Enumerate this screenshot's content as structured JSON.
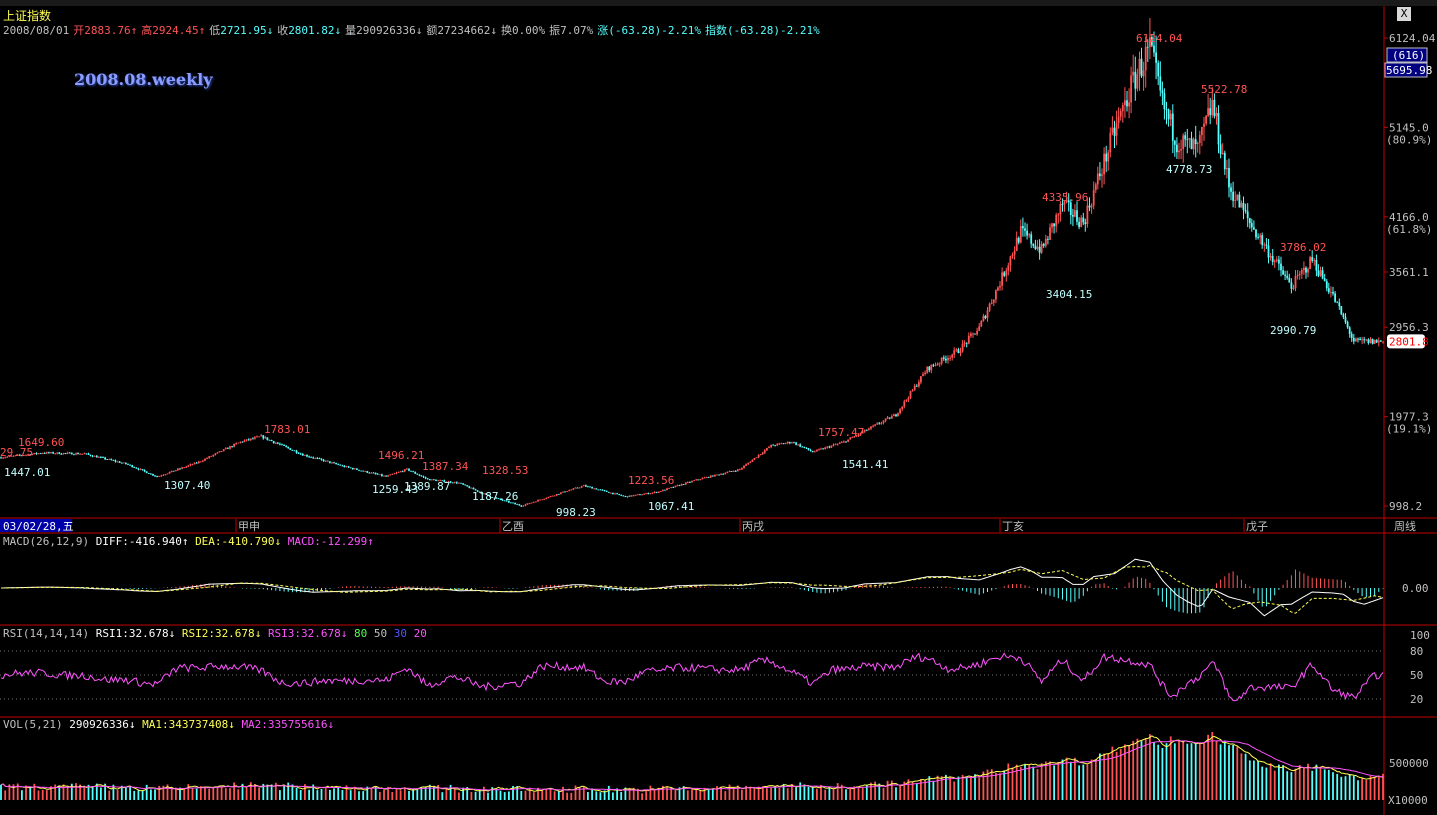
{
  "window": {
    "title": "上证指数",
    "close_glyph": "X"
  },
  "info_line": {
    "date": "2008/08/01",
    "open_label": "开",
    "open": "2883.76",
    "open_arrow": "↑",
    "high_label": "高",
    "high": "2924.45",
    "high_arrow": "↑",
    "low_label": "低",
    "low": "2721.95",
    "low_arrow": "↓",
    "close_label": "收",
    "close": "2801.82",
    "close_arrow": "↓",
    "vol_label": "量",
    "volume": "290926336",
    "vol_arrow": "↓",
    "amount_label": "额",
    "amount": "27234662",
    "amount_arrow": "↓",
    "turnover": "换0.00%",
    "amplitude": "振7.07%",
    "change": "涨(-63.28)-2.21%",
    "index_change": "指数(-63.28)-2.21%"
  },
  "watermark": "2008.08.weekly",
  "right_axis": {
    "ticks": [
      {
        "label": "6124.04",
        "value": 6124.04
      },
      {
        "label": "5145.0",
        "value": 5145.0
      },
      {
        "label": "4166.0",
        "value": 4166.0
      },
      {
        "label": "3561.1",
        "value": 3561.1
      },
      {
        "label": "2956.3",
        "value": 2956.3
      },
      {
        "label": "1977.3",
        "value": 1977.3
      },
      {
        "label": "998.2",
        "value": 998.2
      }
    ],
    "pct_labels": [
      {
        "label": "(80.9%)",
        "value": 5145.0
      },
      {
        "label": "(61.8%)",
        "value": 4166.0
      },
      {
        "label": "(19.1%)",
        "value": 1977.3
      }
    ],
    "box_count": "(616)",
    "box_value": "5695.98",
    "current_price": "2801.8"
  },
  "year_bar": {
    "date_label": "03/02/28,五",
    "years": [
      "甲申",
      "乙酉",
      "丙戌",
      "丁亥",
      "戊子"
    ],
    "period": "周线"
  },
  "macd": {
    "label": "MACD(26,12,9)",
    "diff": "DIFF:-416.940",
    "diff_arrow": "↑",
    "dea": "DEA:-410.790",
    "dea_arrow": "↓",
    "macd": "MACD:-12.299",
    "macd_arrow": "↑",
    "zero_label": "0.00"
  },
  "rsi": {
    "label": "RSI(14,14,14)",
    "rsi1": "RSI1:32.678",
    "rsi1_arrow": "↓",
    "rsi2": "RSI2:32.678",
    "rsi2_arrow": "↓",
    "rsi3": "RSI3:32.678",
    "rsi3_arrow": "↓",
    "lvl80": "80",
    "lvl50": "50",
    "lvl30": "30",
    "lvl20": "20",
    "axis": [
      "100",
      "80",
      "50",
      "20"
    ]
  },
  "vol": {
    "label": "VOL(5,21)",
    "value": "290926336",
    "value_arrow": "↓",
    "ma1": "MA1:343737408",
    "ma1_arrow": "↓",
    "ma2": "MA2:335755616",
    "ma2_arrow": "↓",
    "axis_label": "500000",
    "unit": "X10000"
  },
  "colors": {
    "up": "#ff5454",
    "down": "#54ffff",
    "ma1": "#ffff54",
    "ma2": "#ff54ff",
    "grid": "#c00000"
  },
  "chart_data": {
    "type": "candlestick",
    "title": "上证指数",
    "ylim": [
      998.2,
      6124.04
    ],
    "annotations": [
      {
        "label": "1649.60",
        "value": 1649.6,
        "kind": "high"
      },
      {
        "label": "29.75",
        "value": 1629.75,
        "kind": "high"
      },
      {
        "label": "1447.01",
        "value": 1447.01,
        "kind": "low"
      },
      {
        "label": "1307.40",
        "value": 1307.4,
        "kind": "low"
      },
      {
        "label": "1783.01",
        "value": 1783.01,
        "kind": "high"
      },
      {
        "label": "1496.21",
        "value": 1496.21,
        "kind": "high"
      },
      {
        "label": "1259.43",
        "value": 1259.43,
        "kind": "low"
      },
      {
        "label": "1389.87",
        "value": 1389.87,
        "kind": "low"
      },
      {
        "label": "1387.34",
        "value": 1387.34,
        "kind": "high"
      },
      {
        "label": "1328.53",
        "value": 1328.53,
        "kind": "high"
      },
      {
        "label": "1187.26",
        "value": 1187.26,
        "kind": "low"
      },
      {
        "label": "998.23",
        "value": 998.23,
        "kind": "low"
      },
      {
        "label": "1223.56",
        "value": 1223.56,
        "kind": "high"
      },
      {
        "label": "1067.41",
        "value": 1067.41,
        "kind": "low"
      },
      {
        "label": "1757.47",
        "value": 1757.47,
        "kind": "high"
      },
      {
        "label": "1541.41",
        "value": 1541.41,
        "kind": "low"
      },
      {
        "label": "4335.96",
        "value": 4335.96,
        "kind": "high"
      },
      {
        "label": "3404.15",
        "value": 3404.15,
        "kind": "low"
      },
      {
        "label": "6124.04",
        "value": 6124.04,
        "kind": "high"
      },
      {
        "label": "4778.73",
        "value": 4778.73,
        "kind": "low"
      },
      {
        "label": "5522.78",
        "value": 5522.78,
        "kind": "high"
      },
      {
        "label": "3786.02",
        "value": 3786.02,
        "kind": "high"
      },
      {
        "label": "2990.79",
        "value": 2990.79,
        "kind": "low"
      }
    ],
    "anchors": [
      [
        0,
        1530
      ],
      [
        20,
        1580
      ],
      [
        40,
        1570
      ],
      [
        60,
        1460
      ],
      [
        75,
        1320
      ],
      [
        95,
        1480
      ],
      [
        115,
        1700
      ],
      [
        125,
        1760
      ],
      [
        145,
        1560
      ],
      [
        165,
        1430
      ],
      [
        185,
        1320
      ],
      [
        195,
        1400
      ],
      [
        205,
        1290
      ],
      [
        220,
        1250
      ],
      [
        235,
        1100
      ],
      [
        250,
        1000
      ],
      [
        270,
        1150
      ],
      [
        280,
        1220
      ],
      [
        300,
        1100
      ],
      [
        315,
        1150
      ],
      [
        335,
        1290
      ],
      [
        355,
        1400
      ],
      [
        370,
        1660
      ],
      [
        380,
        1700
      ],
      [
        390,
        1590
      ],
      [
        405,
        1700
      ],
      [
        430,
        2000
      ],
      [
        445,
        2500
      ],
      [
        460,
        2700
      ],
      [
        470,
        2950
      ],
      [
        480,
        3450
      ],
      [
        490,
        4000
      ],
      [
        500,
        3800
      ],
      [
        510,
        4300
      ],
      [
        520,
        4100
      ],
      [
        535,
        5100
      ],
      [
        545,
        5700
      ],
      [
        552,
        6000
      ],
      [
        558,
        5400
      ],
      [
        565,
        5000
      ],
      [
        575,
        4900
      ],
      [
        582,
        5400
      ],
      [
        590,
        4500
      ],
      [
        600,
        4100
      ],
      [
        610,
        3750
      ],
      [
        620,
        3400
      ],
      [
        630,
        3700
      ],
      [
        640,
        3300
      ],
      [
        650,
        2800
      ],
      [
        664,
        2800
      ]
    ]
  }
}
